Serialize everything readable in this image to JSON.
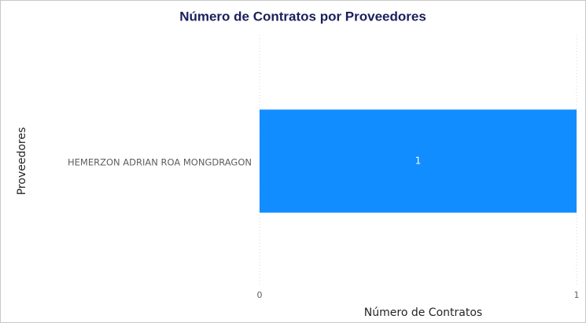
{
  "chart_data": {
    "type": "bar",
    "orientation": "horizontal",
    "title": "Número de Contratos por Proveedores",
    "x_label": "Número de Contratos",
    "y_label": "Proveedores",
    "categories": [
      "HEMERZON ADRIAN ROA MONGDRAGON"
    ],
    "values": [
      1
    ],
    "color": "#118DFF",
    "xlim": [
      0,
      1
    ],
    "xticks": [
      0,
      1
    ],
    "grid": true
  }
}
